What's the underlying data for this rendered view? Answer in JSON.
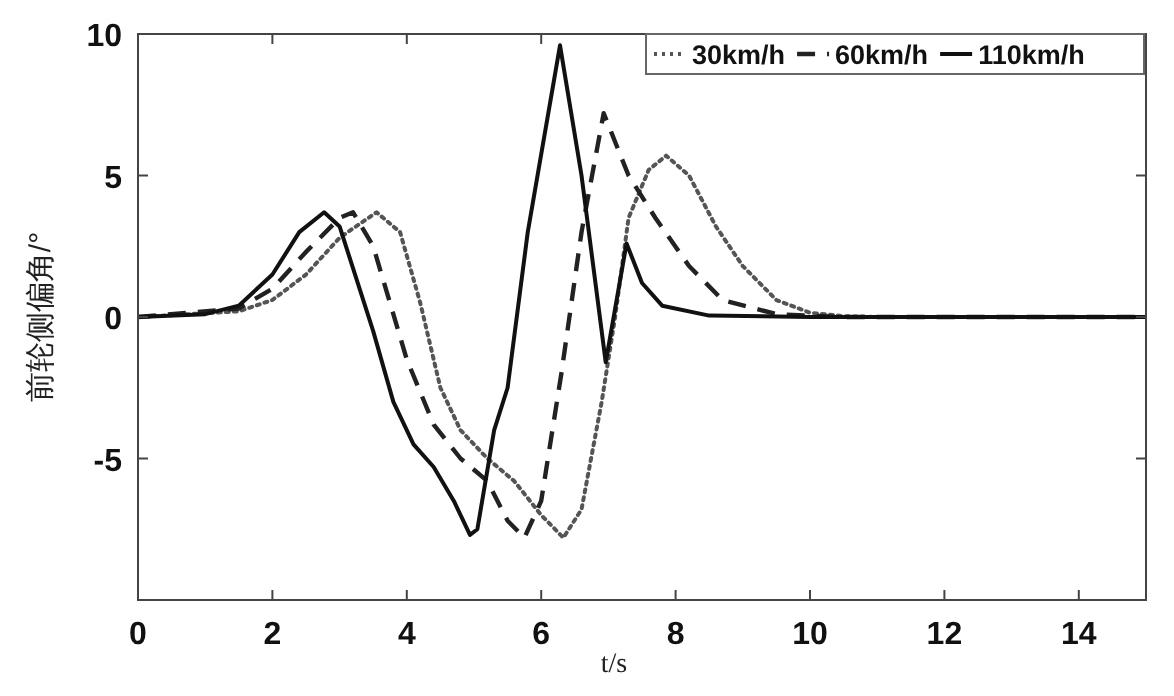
{
  "chart_data": {
    "type": "line",
    "xlabel": "t/s",
    "ylabel": "前轮侧偏角/°",
    "xlim": [
      0,
      15
    ],
    "ylim": [
      -10,
      10
    ],
    "xticks": [
      0,
      2,
      4,
      6,
      8,
      10,
      12,
      14
    ],
    "yticks": [
      {
        "value": -10,
        "label": null
      },
      -5,
      0,
      5,
      10
    ],
    "grid": false,
    "legend": "top right",
    "marker": "none",
    "series": [
      {
        "name": "30km/h",
        "color": "#555555",
        "line_style": "dotted",
        "x": [
          0,
          1.5,
          2,
          2.5,
          3,
          3.55,
          3.9,
          4.2,
          4.5,
          4.8,
          5.2,
          5.6,
          6.0,
          6.33,
          6.6,
          6.9,
          7.1,
          7.3,
          7.6,
          7.86,
          8.2,
          8.6,
          9,
          9.5,
          10,
          10.5,
          11,
          15
        ],
        "values": [
          0,
          0.2,
          0.6,
          1.5,
          2.8,
          3.7,
          3,
          0.5,
          -2.5,
          -4,
          -5,
          -5.8,
          -7,
          -7.8,
          -6.8,
          -3,
          0,
          3.5,
          5.2,
          5.7,
          5,
          3.2,
          1.8,
          0.6,
          0.15,
          0.03,
          0,
          0
        ]
      },
      {
        "name": "60km/h",
        "color": "#222222",
        "line_style": "dashed",
        "x": [
          0,
          1.5,
          2,
          2.5,
          3,
          3.2,
          3.5,
          4,
          4.4,
          4.8,
          5.2,
          5.5,
          5.75,
          6.0,
          6.3,
          6.6,
          6.93,
          7.3,
          7.7,
          8.2,
          8.7,
          9.5,
          10.5,
          15
        ],
        "values": [
          0,
          0.3,
          1,
          2.3,
          3.5,
          3.7,
          2.5,
          -1.5,
          -3.8,
          -5,
          -5.8,
          -7.2,
          -7.8,
          -6.5,
          -2,
          3,
          7.2,
          5,
          3.5,
          1.8,
          0.6,
          0.1,
          0,
          0
        ]
      },
      {
        "name": "110km/h",
        "color": "#111111",
        "line_style": "solid",
        "x": [
          0,
          1,
          1.5,
          2,
          2.4,
          2.77,
          3,
          3.5,
          3.8,
          4.1,
          4.4,
          4.7,
          4.94,
          5.05,
          5.3,
          5.5,
          5.8,
          6.28,
          6.6,
          6.96,
          7.27,
          7.5,
          7.8,
          8.5,
          10,
          15
        ],
        "values": [
          0,
          0.1,
          0.4,
          1.5,
          3,
          3.7,
          3.2,
          -0.5,
          -3,
          -4.5,
          -5.3,
          -6.5,
          -7.7,
          -7.5,
          -4,
          -2.5,
          3,
          9.6,
          5,
          -1.6,
          2.6,
          1.2,
          0.4,
          0.05,
          0,
          0
        ]
      }
    ]
  }
}
